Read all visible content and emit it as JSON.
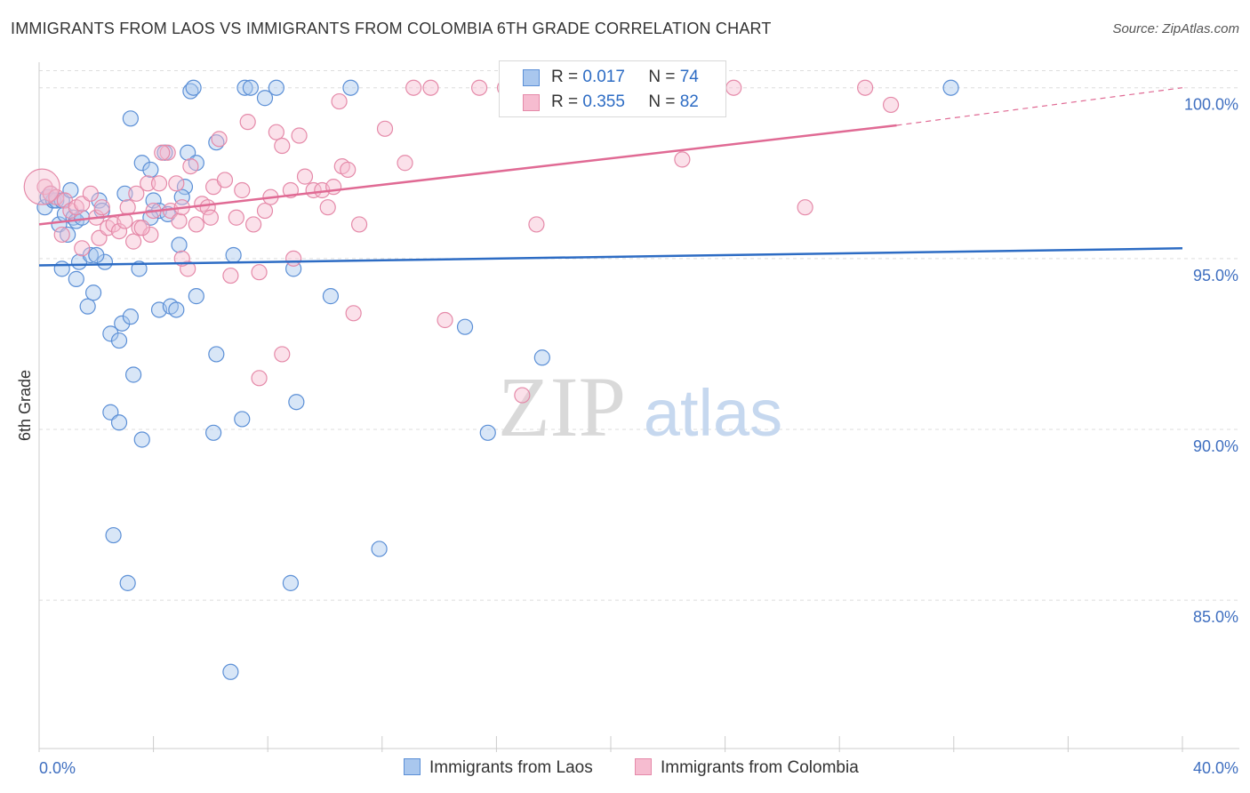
{
  "header": {
    "title": "IMMIGRANTS FROM LAOS VS IMMIGRANTS FROM COLOMBIA 6TH GRADE CORRELATION CHART",
    "source": "Source: ZipAtlas.com"
  },
  "legend": {
    "laos": {
      "r_label": "R = ",
      "r_value": "0.017",
      "n_label": "N = ",
      "n_value": "74"
    },
    "colombia": {
      "r_label": "R = ",
      "r_value": "0.355",
      "n_label": "N = ",
      "n_value": "82"
    }
  },
  "bottom_legend": {
    "laos": "Immigrants from Laos",
    "colombia": "Immigrants from Colombia"
  },
  "watermark": {
    "zip": "ZIP",
    "atlas": "atlas"
  },
  "colors": {
    "laos_fill": "#a9c7ee",
    "laos_stroke": "#5b8fd6",
    "laos_line": "#2d6cc4",
    "colombia_fill": "#f6bcd0",
    "colombia_stroke": "#e58aa9",
    "colombia_line": "#e06a94",
    "tick_text": "#3f6fc0",
    "grid": "#dddddd"
  },
  "chart_data": {
    "type": "scatter",
    "title": "IMMIGRANTS FROM LAOS VS IMMIGRANTS FROM COLOMBIA 6TH GRADE CORRELATION CHART",
    "xlabel": "",
    "ylabel": "6th Grade",
    "xlim": [
      0,
      40
    ],
    "ylim": [
      80.5,
      100.5
    ],
    "x_tick_labels": [
      "0.0%",
      "40.0%"
    ],
    "y_ticks": [
      85,
      90,
      95,
      100
    ],
    "y_tick_labels": [
      "85.0%",
      "90.0%",
      "95.0%",
      "100.0%"
    ],
    "grid": true,
    "legend_position": "top-center",
    "series": [
      {
        "name": "Immigrants from Laos",
        "trend": {
          "x": [
            0,
            40
          ],
          "y": [
            94.8,
            95.3
          ]
        },
        "points": [
          [
            0.2,
            96.5
          ],
          [
            0.3,
            96.8
          ],
          [
            0.5,
            96.7
          ],
          [
            0.6,
            96.7
          ],
          [
            0.8,
            96.7
          ],
          [
            0.7,
            96.0
          ],
          [
            0.9,
            96.3
          ],
          [
            1.0,
            95.7
          ],
          [
            1.2,
            96.2
          ],
          [
            1.3,
            96.1
          ],
          [
            0.8,
            94.7
          ],
          [
            1.4,
            94.9
          ],
          [
            1.8,
            95.1
          ],
          [
            1.3,
            94.4
          ],
          [
            1.7,
            93.6
          ],
          [
            1.9,
            94.0
          ],
          [
            2.1,
            96.7
          ],
          [
            2.2,
            96.4
          ],
          [
            2.3,
            94.9
          ],
          [
            2.5,
            92.8
          ],
          [
            2.8,
            92.6
          ],
          [
            2.9,
            93.1
          ],
          [
            3.2,
            93.3
          ],
          [
            3.6,
            97.8
          ],
          [
            3.5,
            94.7
          ],
          [
            3.3,
            91.6
          ],
          [
            2.5,
            90.5
          ],
          [
            2.8,
            90.2
          ],
          [
            3.6,
            89.7
          ],
          [
            2.6,
            86.9
          ],
          [
            3.1,
            85.5
          ],
          [
            3.2,
            99.1
          ],
          [
            3.9,
            97.6
          ],
          [
            4.0,
            96.7
          ],
          [
            4.2,
            96.4
          ],
          [
            4.4,
            98.1
          ],
          [
            3.9,
            96.2
          ],
          [
            4.2,
            93.5
          ],
          [
            4.6,
            93.6
          ],
          [
            4.8,
            93.5
          ],
          [
            4.9,
            95.4
          ],
          [
            5.1,
            97.1
          ],
          [
            5.2,
            98.1
          ],
          [
            5.5,
            97.8
          ],
          [
            5.3,
            99.9
          ],
          [
            5.4,
            100.0
          ],
          [
            6.2,
            98.4
          ],
          [
            5.5,
            93.9
          ],
          [
            6.2,
            92.2
          ],
          [
            6.1,
            89.9
          ],
          [
            6.8,
            95.1
          ],
          [
            7.1,
            90.3
          ],
          [
            7.2,
            100.0
          ],
          [
            7.4,
            100.0
          ],
          [
            7.9,
            99.7
          ],
          [
            8.3,
            100.0
          ],
          [
            8.9,
            94.7
          ],
          [
            8.8,
            85.5
          ],
          [
            9.0,
            90.8
          ],
          [
            10.2,
            93.9
          ],
          [
            10.9,
            100.0
          ],
          [
            11.9,
            86.5
          ],
          [
            14.9,
            93.0
          ],
          [
            15.7,
            89.9
          ],
          [
            17.6,
            92.1
          ],
          [
            31.9,
            100.0
          ],
          [
            6.7,
            82.9
          ],
          [
            0.4,
            96.9
          ],
          [
            1.5,
            96.2
          ],
          [
            2.0,
            95.1
          ],
          [
            4.5,
            96.3
          ],
          [
            5.0,
            96.8
          ],
          [
            3.0,
            96.9
          ],
          [
            1.1,
            97.0
          ]
        ]
      },
      {
        "name": "Immigrants from Colombia",
        "trend": {
          "x": [
            0,
            30
          ],
          "y": [
            96.0,
            98.9
          ]
        },
        "trend_extension": {
          "x": [
            30,
            40
          ],
          "y": [
            98.9,
            100.0
          ]
        },
        "points": [
          [
            0.2,
            97.1
          ],
          [
            0.4,
            96.9
          ],
          [
            0.6,
            96.8
          ],
          [
            0.9,
            96.7
          ],
          [
            1.1,
            96.4
          ],
          [
            1.3,
            96.5
          ],
          [
            1.5,
            96.6
          ],
          [
            1.8,
            96.9
          ],
          [
            2.0,
            96.2
          ],
          [
            2.2,
            96.5
          ],
          [
            0.8,
            95.7
          ],
          [
            1.5,
            95.3
          ],
          [
            2.1,
            95.6
          ],
          [
            2.4,
            95.9
          ],
          [
            2.6,
            96.0
          ],
          [
            2.8,
            95.8
          ],
          [
            3.0,
            96.1
          ],
          [
            3.1,
            96.5
          ],
          [
            3.3,
            95.5
          ],
          [
            3.5,
            95.9
          ],
          [
            3.4,
            96.9
          ],
          [
            3.8,
            97.2
          ],
          [
            3.9,
            95.7
          ],
          [
            4.0,
            96.4
          ],
          [
            4.2,
            97.2
          ],
          [
            4.5,
            98.1
          ],
          [
            4.6,
            96.4
          ],
          [
            4.8,
            97.2
          ],
          [
            4.9,
            96.1
          ],
          [
            5.0,
            96.5
          ],
          [
            5.2,
            94.7
          ],
          [
            5.3,
            97.7
          ],
          [
            5.5,
            96.0
          ],
          [
            5.7,
            96.6
          ],
          [
            5.9,
            96.5
          ],
          [
            6.1,
            97.1
          ],
          [
            6.3,
            98.5
          ],
          [
            6.5,
            97.3
          ],
          [
            6.7,
            94.5
          ],
          [
            6.9,
            96.2
          ],
          [
            7.1,
            97.0
          ],
          [
            7.3,
            99.0
          ],
          [
            7.5,
            96.0
          ],
          [
            7.7,
            94.6
          ],
          [
            7.9,
            96.4
          ],
          [
            8.1,
            96.8
          ],
          [
            8.3,
            98.7
          ],
          [
            8.5,
            98.3
          ],
          [
            8.8,
            97.0
          ],
          [
            8.9,
            95.0
          ],
          [
            9.1,
            98.6
          ],
          [
            9.3,
            97.4
          ],
          [
            9.6,
            97.0
          ],
          [
            9.9,
            97.0
          ],
          [
            10.1,
            96.5
          ],
          [
            10.3,
            97.1
          ],
          [
            10.6,
            97.7
          ],
          [
            10.8,
            97.6
          ],
          [
            10.5,
            99.6
          ],
          [
            11.2,
            96.0
          ],
          [
            12.1,
            98.8
          ],
          [
            12.8,
            97.8
          ],
          [
            13.1,
            100.0
          ],
          [
            13.7,
            100.0
          ],
          [
            14.2,
            93.2
          ],
          [
            15.4,
            100.0
          ],
          [
            16.3,
            100.0
          ],
          [
            16.9,
            91.0
          ],
          [
            17.4,
            96.0
          ],
          [
            20.9,
            100.0
          ],
          [
            22.5,
            97.9
          ],
          [
            24.3,
            100.0
          ],
          [
            26.8,
            96.5
          ],
          [
            28.9,
            100.0
          ],
          [
            29.8,
            99.5
          ],
          [
            11.0,
            93.4
          ],
          [
            8.5,
            92.2
          ],
          [
            7.7,
            91.5
          ],
          [
            5.0,
            95.0
          ],
          [
            6.0,
            96.2
          ],
          [
            4.3,
            98.1
          ],
          [
            3.6,
            95.9
          ]
        ]
      }
    ]
  }
}
